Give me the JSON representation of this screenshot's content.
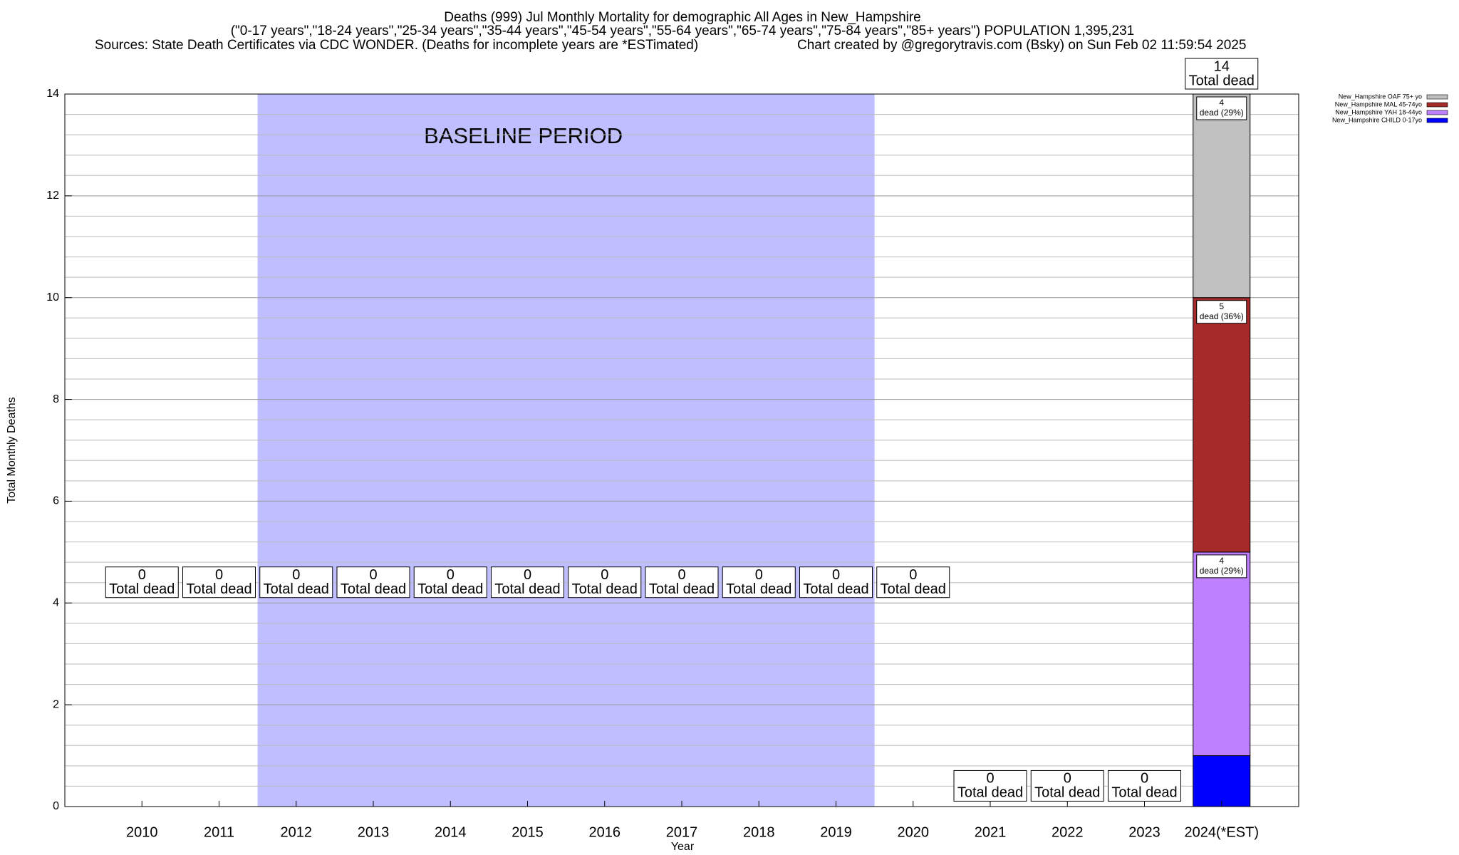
{
  "chart_data": {
    "type": "stacked-bar",
    "title": "Deaths (999) Jul Monthly Mortality for demographic All Ages in New_Hampshire",
    "subtitle": "(\"0-17 years\",\"18-24 years\",\"25-34 years\",\"35-44 years\",\"45-54 years\",\"55-64 years\",\"65-74 years\",\"75-84 years\",\"85+ years\") POPULATION 1,395,231",
    "sources": "Sources: State Death Certificates via CDC WONDER. (Deaths for incomplete years are *ESTimated)",
    "credit": "Chart created by @gregorytravis.com (Bsky) on Sun Feb 02 11:59:54 2025",
    "x_label": "Year",
    "y_label": "Total Monthly Deaths",
    "categories": [
      "2010",
      "2011",
      "2012",
      "2013",
      "2014",
      "2015",
      "2016",
      "2017",
      "2018",
      "2019",
      "2020",
      "2021",
      "2022",
      "2023",
      "2024(*EST)"
    ],
    "series": [
      {
        "name": "New_Hampshire CHILD 0-17yo",
        "color": "#0000ff",
        "values": [
          0,
          0,
          0,
          0,
          0,
          0,
          0,
          0,
          0,
          0,
          0,
          0,
          0,
          0,
          1
        ]
      },
      {
        "name": "New_Hampshire YAH 18-44yo",
        "color": "#bf80ff",
        "values": [
          0,
          0,
          0,
          0,
          0,
          0,
          0,
          0,
          0,
          0,
          0,
          0,
          0,
          0,
          4
        ],
        "value_labels": [
          null,
          null,
          null,
          null,
          null,
          null,
          null,
          null,
          null,
          null,
          null,
          null,
          null,
          null,
          "dead (29%)"
        ]
      },
      {
        "name": "New_Hampshire MAL 45-74yo",
        "color": "#a52a2a",
        "values": [
          0,
          0,
          0,
          0,
          0,
          0,
          0,
          0,
          0,
          0,
          0,
          0,
          0,
          0,
          5
        ],
        "value_labels": [
          null,
          null,
          null,
          null,
          null,
          null,
          null,
          null,
          null,
          null,
          null,
          null,
          null,
          null,
          "dead (36%)"
        ]
      },
      {
        "name": "New_Hampshire OAF 75+ yo",
        "color": "#c0c0c0",
        "values": [
          0,
          0,
          0,
          0,
          0,
          0,
          0,
          0,
          0,
          0,
          0,
          0,
          0,
          0,
          4
        ],
        "value_labels": [
          null,
          null,
          null,
          null,
          null,
          null,
          null,
          null,
          null,
          null,
          null,
          null,
          null,
          null,
          "dead (29%)"
        ]
      }
    ],
    "totals": [
      0,
      0,
      0,
      0,
      0,
      0,
      0,
      0,
      0,
      0,
      0,
      0,
      0,
      0,
      14
    ],
    "total_label": "Total dead",
    "baseline": {
      "label": "BASELINE PERIOD",
      "start": "2012",
      "end": "2019",
      "color": "#bfbfff"
    },
    "ylim": [
      0,
      14
    ],
    "yticks": [
      0,
      2,
      4,
      6,
      8,
      10,
      12,
      14
    ],
    "minor_yticks": [
      0.4,
      0.8,
      1.2,
      1.6,
      2.4,
      2.8,
      3.2,
      3.6,
      4.4,
      4.8,
      5.2,
      5.6,
      6.4,
      6.8,
      7.2,
      7.6,
      8.4,
      8.8,
      9.2,
      9.6,
      10.4,
      10.8,
      11.2,
      11.6,
      12.4,
      12.8,
      13.2,
      13.6
    ],
    "grid": true,
    "legend": "top-right"
  }
}
